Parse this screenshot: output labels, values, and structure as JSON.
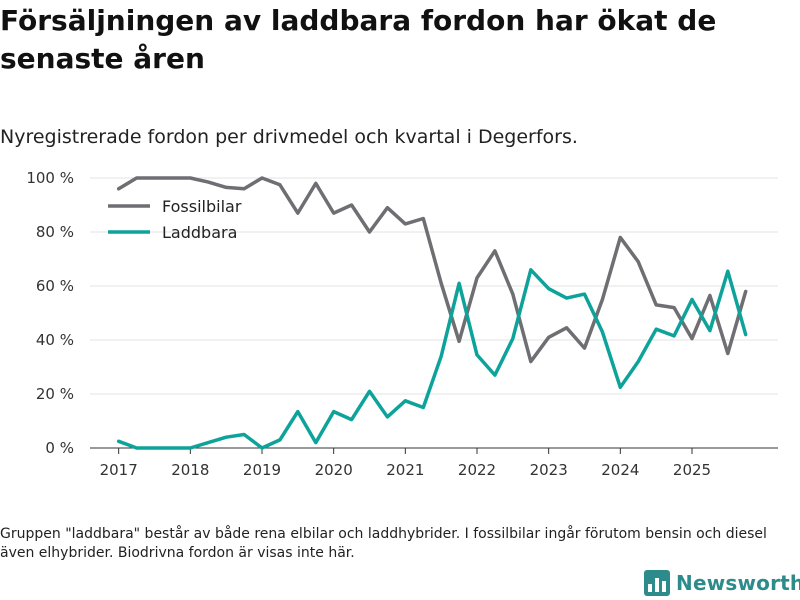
{
  "header": {
    "title": "Försäljningen av laddbara fordon har ökat de senaste åren",
    "subtitle": "Nyregistrerade fordon per drivmedel och kvartal i Degerfors."
  },
  "footer": {
    "note": "Gruppen \"laddbara\" består av både rena elbilar och laddhybrider. I fossilbilar ingår förutom bensin och diesel även elhybrider. Biodrivna fordon är visas inte här.",
    "brand": "Newsworthy",
    "brand_icon": "bar-chart-icon"
  },
  "chart_data": {
    "type": "line",
    "title": "Försäljningen av laddbara fordon har ökat de senaste åren",
    "subtitle": "Nyregistrerade fordon per drivmedel och kvartal i Degerfors.",
    "xlabel": "",
    "ylabel": "",
    "xlim": [
      2016.6,
      2026.2
    ],
    "ylim": [
      0,
      100
    ],
    "x_ticks": [
      2017,
      2018,
      2019,
      2020,
      2021,
      2022,
      2023,
      2024,
      2025
    ],
    "x_tick_labels": [
      "2017",
      "2018",
      "2019",
      "2020",
      "2021",
      "2022",
      "2023",
      "2024",
      "2025"
    ],
    "y_ticks": [
      0,
      20,
      40,
      60,
      80,
      100
    ],
    "y_tick_labels": [
      "0 %",
      "20 %",
      "40 %",
      "60 %",
      "80 %",
      "100 %"
    ],
    "grid": true,
    "legend_position": "top-left",
    "x": [
      2017.0,
      2017.25,
      2017.5,
      2017.75,
      2018.0,
      2018.25,
      2018.5,
      2018.75,
      2019.0,
      2019.25,
      2019.5,
      2019.75,
      2020.0,
      2020.25,
      2020.5,
      2020.75,
      2021.0,
      2021.25,
      2021.5,
      2021.75,
      2022.0,
      2022.25,
      2022.5,
      2022.75,
      2023.0,
      2023.25,
      2023.5,
      2023.75,
      2024.0,
      2024.25,
      2024.5,
      2024.75,
      2025.0,
      2025.25,
      2025.5,
      2025.75
    ],
    "series": [
      {
        "name": "Fossilbilar",
        "color": "#6e6e73",
        "values": [
          96,
          100,
          100,
          100,
          100,
          98.5,
          96.5,
          96,
          100,
          97.5,
          87,
          98,
          87,
          90,
          80,
          89,
          83,
          85,
          61,
          39.5,
          63,
          73,
          57,
          32,
          41,
          44.5,
          37,
          55,
          78,
          69,
          53,
          52,
          40.5,
          56.5,
          35,
          58
        ]
      },
      {
        "name": "Laddbara",
        "color": "#0ea39a",
        "values": [
          2.5,
          0,
          0,
          0,
          0,
          2,
          4,
          5,
          0,
          3,
          13.5,
          2,
          13.5,
          10.5,
          21,
          11.5,
          17.5,
          15,
          34,
          61,
          34.5,
          27,
          40.5,
          66,
          59,
          55.5,
          57,
          43,
          22.5,
          32,
          44,
          41.5,
          55,
          43.5,
          65.5,
          42
        ]
      }
    ]
  }
}
